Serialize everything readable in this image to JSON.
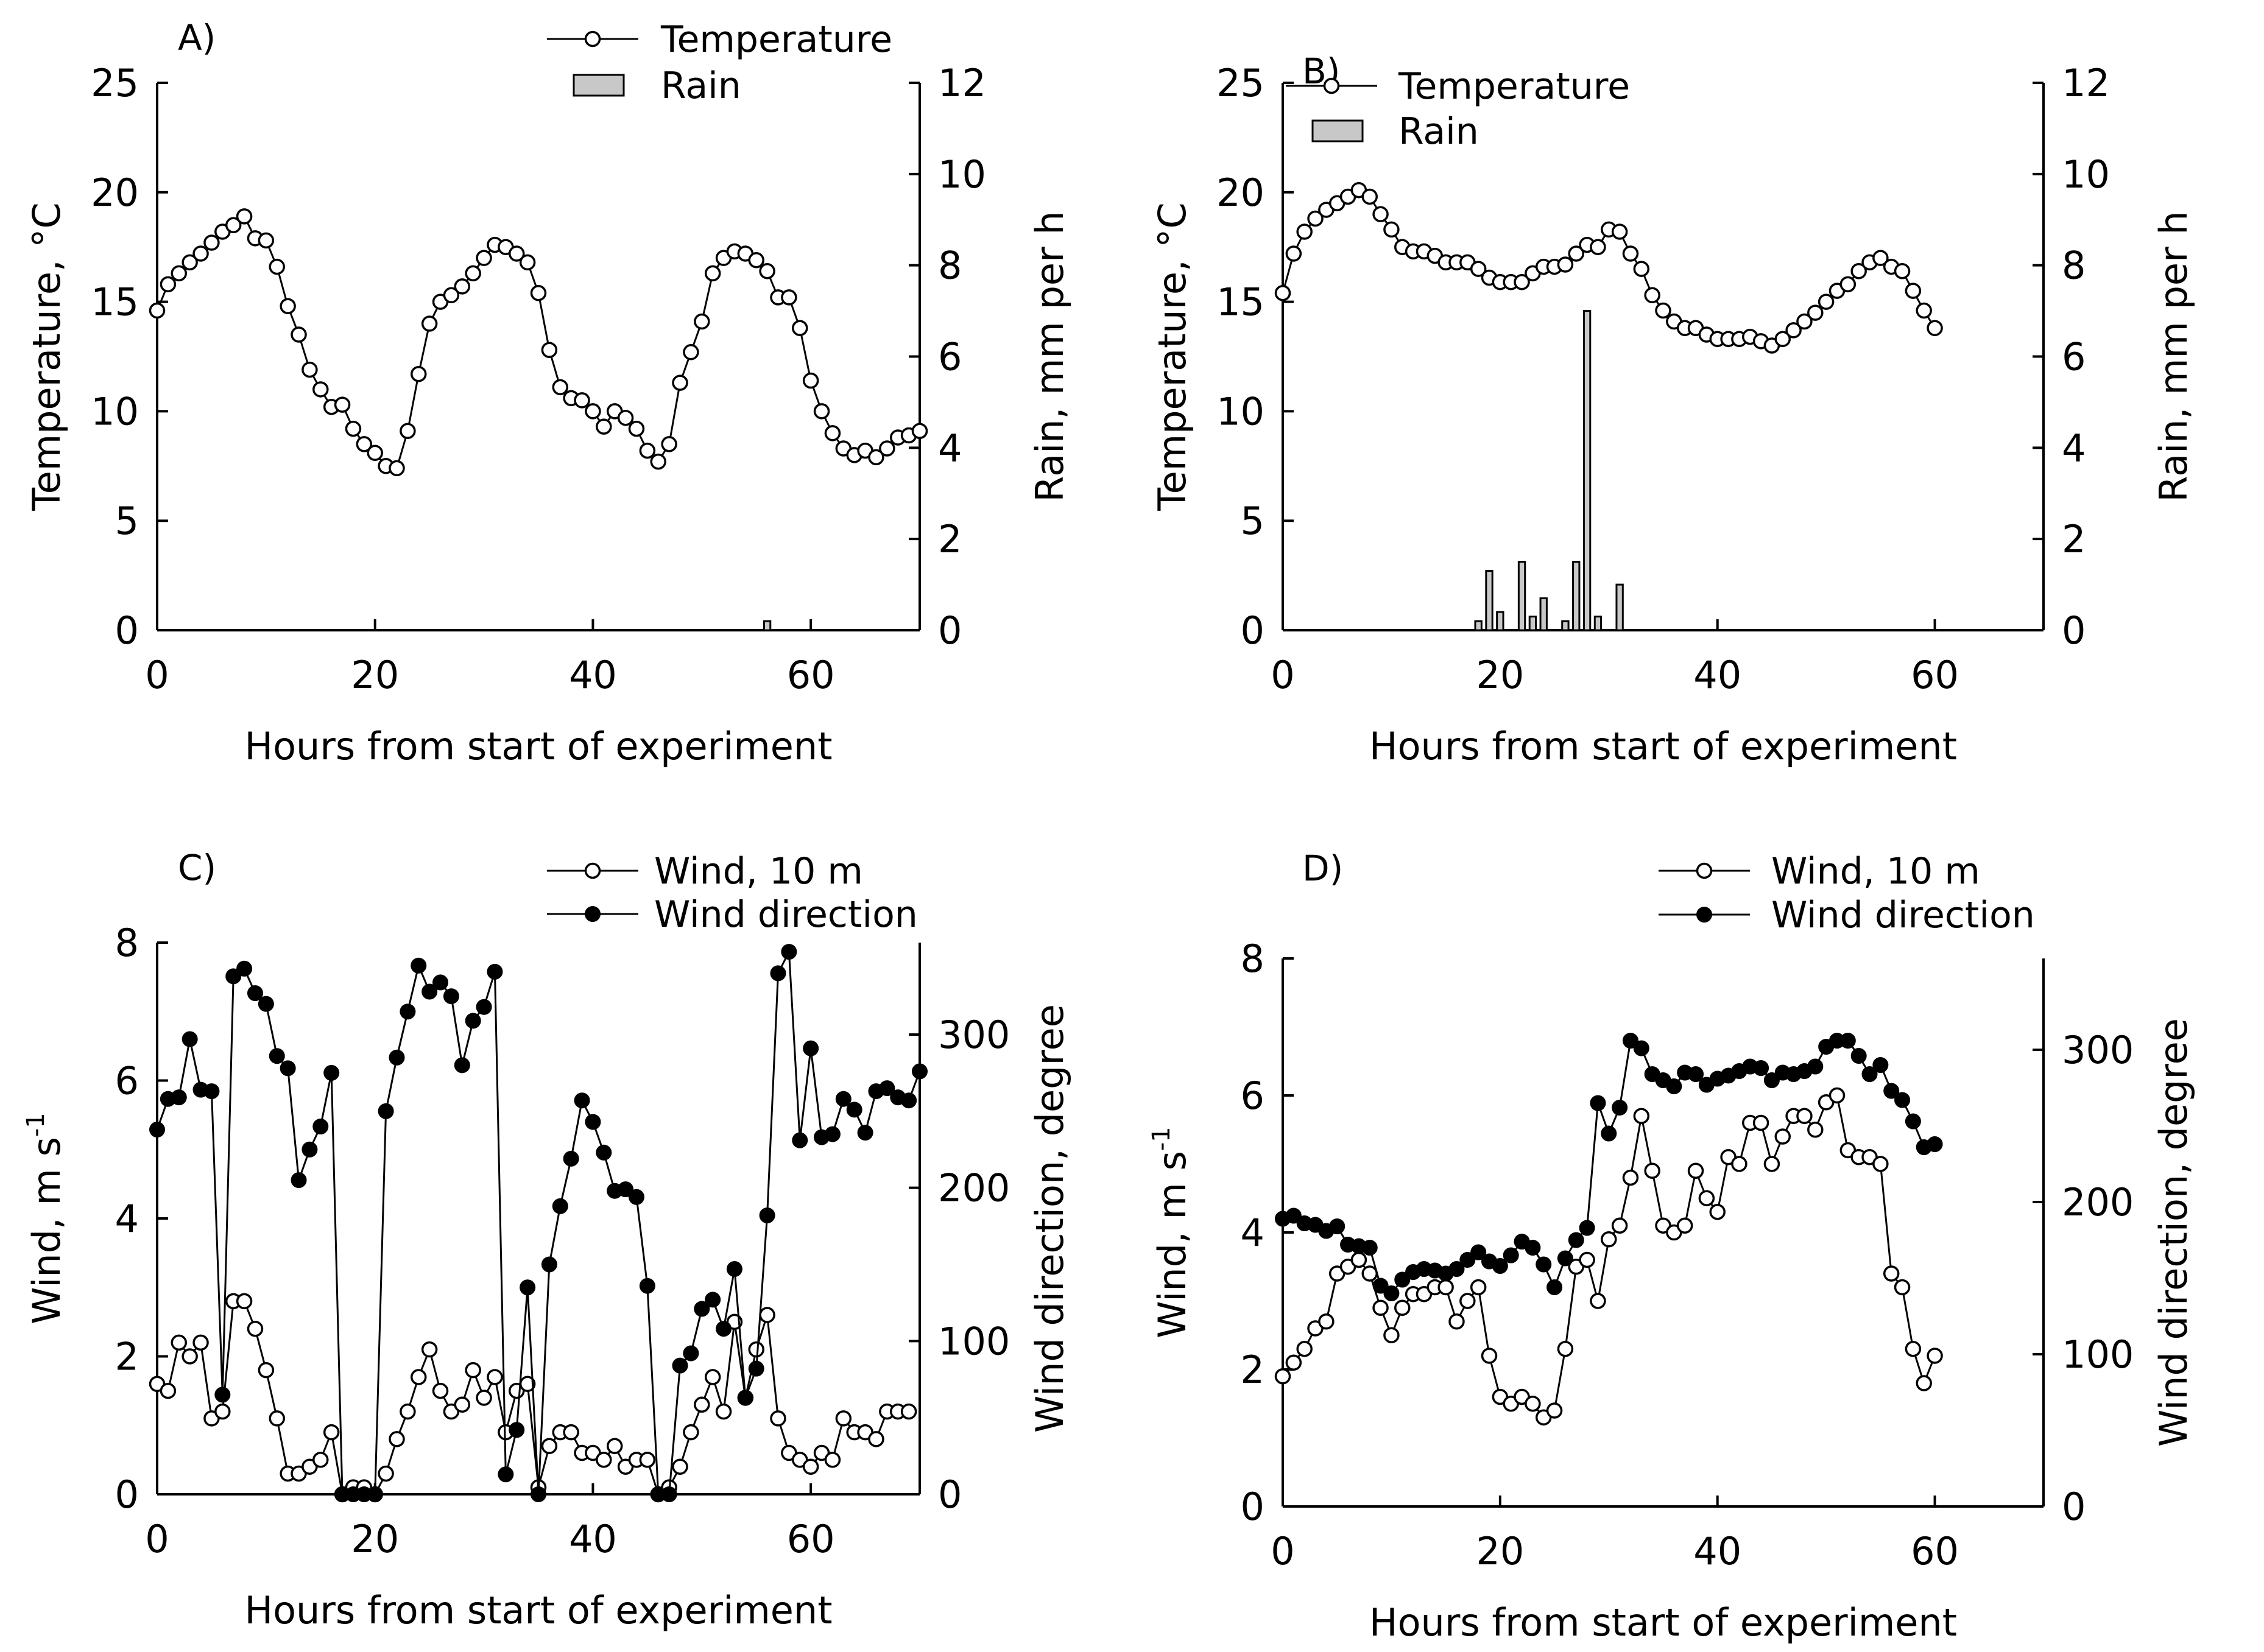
{
  "chart_data": [
    {
      "id": "A",
      "type": "line+bar",
      "panel_label": "A)",
      "xlabel": "Hours from start of experiment",
      "ylabel": "Temperature, °C",
      "y2label": "Rain, mm per h",
      "xlim": [
        0,
        70
      ],
      "xticks": [
        0,
        20,
        40,
        60
      ],
      "ylim": [
        0,
        25
      ],
      "yticks": [
        0,
        5,
        10,
        15,
        20,
        25
      ],
      "y2lim": [
        0,
        12
      ],
      "y2ticks": [
        0,
        2,
        4,
        6,
        8,
        10,
        12
      ],
      "legend": [
        {
          "label": "Temperature",
          "marker": "open-circle"
        },
        {
          "label": "Rain",
          "marker": "bar"
        }
      ],
      "series": [
        {
          "name": "Temperature",
          "axis": "left",
          "style": "open",
          "x_start": 0,
          "values": [
            14.6,
            15.8,
            16.3,
            16.8,
            17.2,
            17.7,
            18.2,
            18.5,
            18.9,
            17.9,
            17.8,
            16.6,
            14.8,
            13.5,
            11.9,
            11.0,
            10.2,
            10.3,
            9.2,
            8.5,
            8.1,
            7.5,
            7.4,
            9.1,
            11.7,
            14.0,
            15.0,
            15.3,
            15.7,
            16.3,
            17.0,
            17.6,
            17.5,
            17.2,
            16.8,
            15.4,
            12.8,
            11.1,
            10.6,
            10.5,
            10.0,
            9.3,
            10.0,
            9.7,
            9.2,
            8.2,
            7.7,
            8.5,
            11.3,
            12.7,
            14.1,
            16.3,
            17.0,
            17.3,
            17.2,
            16.9,
            16.4,
            15.2,
            15.2,
            13.8,
            11.4,
            10.0,
            9.0,
            8.3,
            8.0,
            8.2,
            7.9,
            8.3,
            8.8,
            8.9,
            9.1
          ]
        },
        {
          "name": "Rain",
          "axis": "right",
          "type": "bar",
          "x": [
            56
          ],
          "values": [
            0.2
          ]
        }
      ]
    },
    {
      "id": "B",
      "type": "line+bar",
      "panel_label": "B)",
      "xlabel": "Hours from start of experiment",
      "ylabel": "Temperature, °C",
      "y2label": "Rain, mm per h",
      "xlim": [
        0,
        70
      ],
      "xticks": [
        0,
        20,
        40,
        60
      ],
      "ylim": [
        0,
        25
      ],
      "yticks": [
        0,
        5,
        10,
        15,
        20,
        25
      ],
      "y2lim": [
        0,
        12
      ],
      "y2ticks": [
        0,
        2,
        4,
        6,
        8,
        10,
        12
      ],
      "legend": [
        {
          "label": "Temperature",
          "marker": "open-circle"
        },
        {
          "label": "Rain",
          "marker": "bar"
        }
      ],
      "series": [
        {
          "name": "Temperature",
          "axis": "left",
          "style": "open",
          "x_start": 0,
          "values": [
            15.4,
            17.2,
            18.2,
            18.8,
            19.2,
            19.5,
            19.8,
            20.1,
            19.8,
            19.0,
            18.3,
            17.5,
            17.3,
            17.3,
            17.1,
            16.8,
            16.8,
            16.8,
            16.5,
            16.1,
            15.9,
            15.9,
            15.9,
            16.3,
            16.6,
            16.6,
            16.7,
            17.2,
            17.6,
            17.5,
            18.3,
            18.2,
            17.2,
            16.5,
            15.3,
            14.6,
            14.1,
            13.8,
            13.8,
            13.5,
            13.3,
            13.3,
            13.3,
            13.4,
            13.2,
            13.0,
            13.3,
            13.7,
            14.1,
            14.5,
            15.0,
            15.5,
            15.8,
            16.4,
            16.8,
            17.0,
            16.6,
            16.4,
            15.5,
            14.6,
            13.8
          ]
        },
        {
          "name": "Rain",
          "axis": "right",
          "type": "bar",
          "x": [
            18,
            19,
            20,
            22,
            23,
            24,
            26,
            27,
            28,
            29,
            31
          ],
          "values": [
            0.2,
            1.3,
            0.4,
            1.5,
            0.3,
            0.7,
            0.2,
            1.5,
            7.0,
            0.3,
            1.0
          ]
        }
      ]
    },
    {
      "id": "C",
      "type": "line",
      "panel_label": "C)",
      "xlabel": "Hours from start of experiment",
      "ylabel": "Wind, m s",
      "ylabel_sup": "-1",
      "y2label": "Wind direction, degree",
      "xlim": [
        0,
        70
      ],
      "xticks": [
        0,
        20,
        40,
        60
      ],
      "ylim": [
        0,
        8
      ],
      "yticks": [
        0,
        2,
        4,
        6,
        8
      ],
      "y2lim": [
        0,
        360
      ],
      "y2ticks": [
        0,
        100,
        200,
        300
      ],
      "legend": [
        {
          "label": "Wind, 10 m",
          "marker": "open-circle"
        },
        {
          "label": "Wind direction",
          "marker": "filled-circle"
        }
      ],
      "series": [
        {
          "name": "Wind, 10 m",
          "axis": "left",
          "style": "open",
          "x_start": 0,
          "values": [
            1.6,
            1.5,
            2.2,
            2.0,
            2.2,
            1.1,
            1.2,
            2.8,
            2.8,
            2.4,
            1.8,
            1.1,
            0.3,
            0.3,
            0.4,
            0.5,
            0.9,
            0.0,
            0.1,
            0.1,
            0.0,
            0.3,
            0.8,
            1.2,
            1.7,
            2.1,
            1.5,
            1.2,
            1.3,
            1.8,
            1.4,
            1.7,
            0.9,
            1.5,
            1.6,
            0.1,
            0.7,
            0.9,
            0.9,
            0.6,
            0.6,
            0.5,
            0.7,
            0.4,
            0.5,
            0.5,
            0.0,
            0.1,
            0.4,
            0.9,
            1.3,
            1.7,
            1.2,
            2.5,
            1.4,
            2.1,
            2.6,
            1.1,
            0.6,
            0.5,
            0.4,
            0.6,
            0.5,
            1.1,
            0.9,
            0.9,
            0.8,
            1.2,
            1.2,
            1.2
          ]
        },
        {
          "name": "Wind direction",
          "axis": "right",
          "style": "filled",
          "x_start": 0,
          "values": [
            238,
            258,
            259,
            297,
            264,
            263,
            65,
            338,
            343,
            327,
            320,
            286,
            278,
            205,
            225,
            240,
            275,
            0,
            0,
            0,
            0,
            250,
            285,
            315,
            345,
            328,
            334,
            325,
            280,
            309,
            318,
            341,
            13,
            42,
            135,
            0,
            150,
            188,
            219,
            257,
            243,
            223,
            198,
            199,
            194,
            136,
            0,
            0,
            84,
            92,
            121,
            127,
            108,
            147,
            63,
            82,
            182,
            340,
            354,
            231,
            291,
            233,
            235,
            258,
            251,
            236,
            263,
            265,
            259,
            257,
            276
          ]
        }
      ]
    },
    {
      "id": "D",
      "type": "line",
      "panel_label": "D)",
      "xlabel": "Hours from start of experiment",
      "ylabel": "Wind, m s",
      "ylabel_sup": "-1",
      "y2label": "Wind direction, degree",
      "xlim": [
        0,
        70
      ],
      "xticks": [
        0,
        20,
        40,
        60
      ],
      "ylim": [
        0,
        8
      ],
      "yticks": [
        0,
        2,
        4,
        6,
        8
      ],
      "y2lim": [
        0,
        360
      ],
      "y2ticks": [
        0,
        100,
        200,
        300
      ],
      "legend": [
        {
          "label": "Wind, 10 m",
          "marker": "open-circle"
        },
        {
          "label": "Wind direction",
          "marker": "filled-circle"
        }
      ],
      "series": [
        {
          "name": "Wind, 10 m",
          "axis": "left",
          "style": "open",
          "x_start": 0,
          "values": [
            1.9,
            2.1,
            2.3,
            2.6,
            2.7,
            3.4,
            3.5,
            3.6,
            3.4,
            2.9,
            2.5,
            2.9,
            3.1,
            3.1,
            3.2,
            3.2,
            2.7,
            3.0,
            3.2,
            2.2,
            1.6,
            1.5,
            1.6,
            1.5,
            1.3,
            1.4,
            2.3,
            3.5,
            3.6,
            3.0,
            3.9,
            4.1,
            4.8,
            5.7,
            4.9,
            4.1,
            4.0,
            4.1,
            4.9,
            4.5,
            4.3,
            5.1,
            5.0,
            5.6,
            5.6,
            5.0,
            5.4,
            5.7,
            5.7,
            5.5,
            5.9,
            6.0,
            5.2,
            5.1,
            5.1,
            5.0,
            3.4,
            3.2,
            2.3,
            1.8,
            2.2
          ]
        },
        {
          "name": "Wind direction",
          "axis": "right",
          "style": "filled",
          "x_start": 0,
          "values": [
            189,
            191,
            186,
            185,
            181,
            184,
            172,
            171,
            170,
            145,
            140,
            149,
            154,
            156,
            155,
            153,
            156,
            162,
            167,
            161,
            158,
            165,
            174,
            170,
            159,
            144,
            163,
            175,
            183,
            265,
            245,
            262,
            306,
            301,
            284,
            280,
            276,
            285,
            284,
            277,
            281,
            283,
            286,
            289,
            288,
            280,
            285,
            284,
            286,
            289,
            302,
            306,
            306,
            296,
            284,
            290,
            273,
            267,
            253,
            236,
            238
          ]
        }
      ]
    }
  ]
}
